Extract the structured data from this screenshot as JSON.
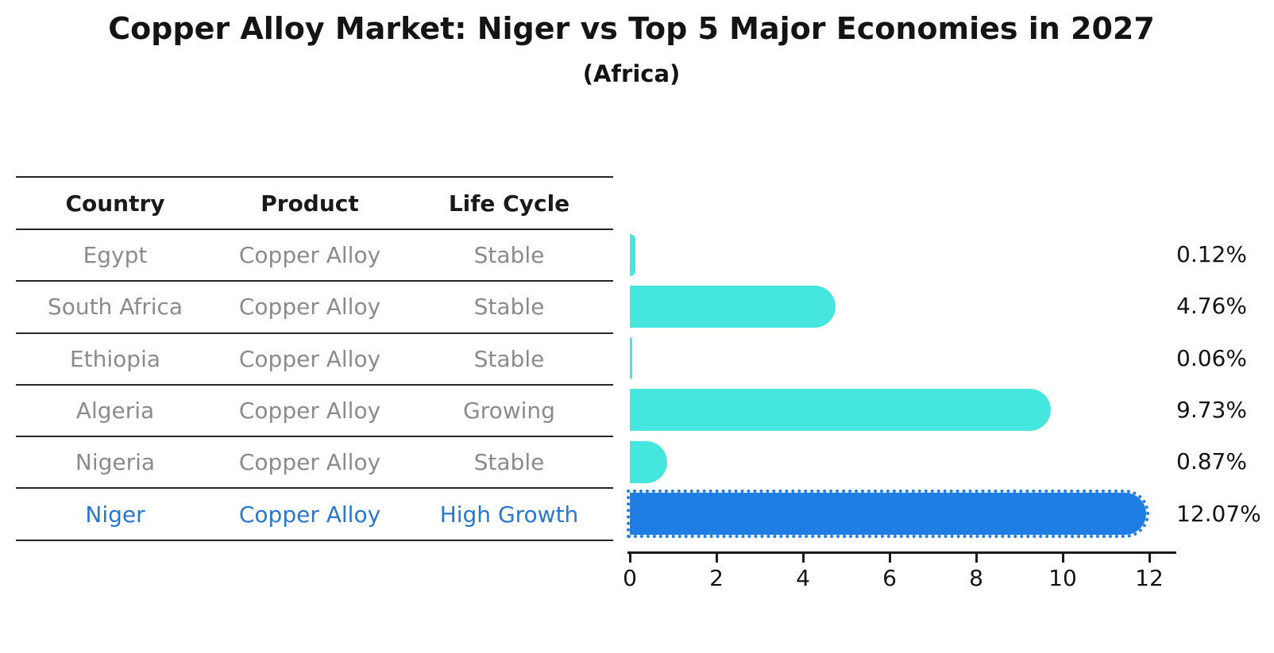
{
  "header": {
    "title": "Copper Alloy Market: Niger vs Top 5 Major Economies in 2027",
    "subtitle": "(Africa)"
  },
  "table": {
    "columns": [
      "Country",
      "Product",
      "Life Cycle"
    ],
    "rows": [
      {
        "country": "Egypt",
        "product": "Copper Alloy",
        "life_cycle": "Stable",
        "highlight": false
      },
      {
        "country": "South Africa",
        "product": "Copper Alloy",
        "life_cycle": "Stable",
        "highlight": false
      },
      {
        "country": "Ethiopia",
        "product": "Copper Alloy",
        "life_cycle": "Stable",
        "highlight": false
      },
      {
        "country": "Algeria",
        "product": "Copper Alloy",
        "life_cycle": "Growing",
        "highlight": false
      },
      {
        "country": "Nigeria",
        "product": "Copper Alloy",
        "life_cycle": "Stable",
        "highlight": false
      },
      {
        "country": "Niger",
        "product": "Copper Alloy",
        "life_cycle": "High Growth",
        "highlight": true
      }
    ]
  },
  "chart_data": {
    "type": "bar",
    "orientation": "horizontal",
    "title": "Copper Alloy Market: Niger vs Top 5 Major Economies in 2027",
    "subtitle": "(Africa)",
    "categories": [
      "Egypt",
      "South Africa",
      "Ethiopia",
      "Algeria",
      "Nigeria",
      "Niger"
    ],
    "values": [
      0.12,
      4.76,
      0.06,
      9.73,
      0.87,
      12.07
    ],
    "value_labels": [
      "0.12%",
      "4.76%",
      "0.06%",
      "9.73%",
      "0.87%",
      "12.07%"
    ],
    "xlabel": "",
    "ylabel": "",
    "xlim": [
      0,
      12.68
    ],
    "xticks": [
      0,
      2,
      4,
      6,
      8,
      10,
      12
    ],
    "grid": false,
    "legend": false,
    "bar_color": "#45e6dd",
    "highlight_index": 5,
    "highlight_color": "#1f7ee3",
    "highlight_edge_style": "dotted"
  },
  "colors": {
    "title_text": "#141414",
    "table_header_text": "#1a1a1a",
    "table_row_text": "#8b8b8b",
    "highlight_row_text": "#2878ce",
    "axis": "#1a1a1a"
  }
}
